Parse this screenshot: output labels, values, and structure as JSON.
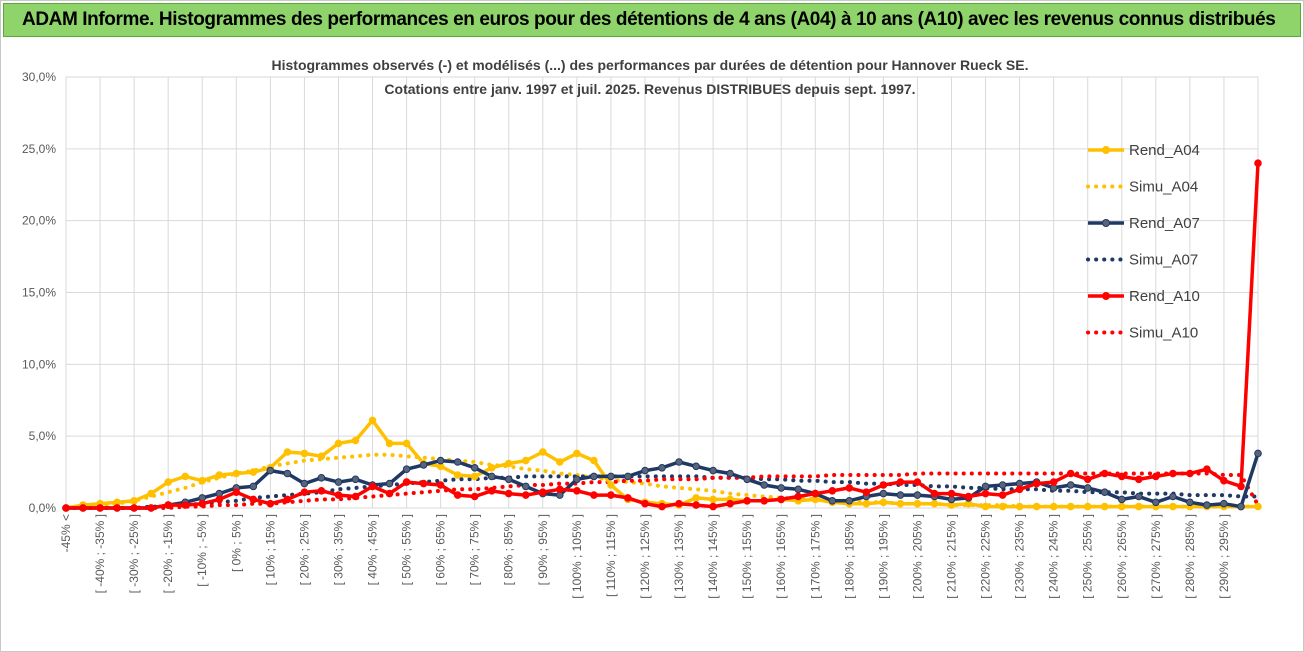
{
  "banner": {
    "title": "ADAM Informe. Histogrammes des performances en euros pour des détentions de 4 ans (A04) à 10 ans (A10) avec les revenus connus distribués"
  },
  "chart_data": {
    "type": "line",
    "title": "Histogrammes observés (-) et modélisés (...)  des performances par durées de détention pour Hannover Rueck SE.",
    "subtitle": "Cotations entre janv. 1997 et juil. 2025. Revenus DISTRIBUES depuis sept. 1997.",
    "ylim": [
      0,
      30
    ],
    "yticks": [
      "0,0%",
      "5,0%",
      "10,0%",
      "15,0%",
      "20,0%",
      "25,0%",
      "30,0%"
    ],
    "x_tick_labels": [
      "-45% <",
      "[ -40% ; -35% ]",
      "[ -30% ; -25% ]",
      "[ -20% ; -15% ]",
      "[ -10% ; -5% ]",
      "[ 0% ; 5% ]",
      "[ 10% ; 15% ]",
      "[ 20% ; 25% ]",
      "[ 30% ; 35% ]",
      "[ 40% ; 45% ]",
      "[ 50% ; 55% ]",
      "[ 60% ; 65% ]",
      "[ 70% ; 75% ]",
      "[ 80% ; 85% ]",
      "[ 90% ; 95% ]",
      "[ 100% ; 105% ]",
      "[ 110% ; 115% ]",
      "[ 120% ; 125% ]",
      "[ 130% ; 135% ]",
      "[ 140% ; 145% ]",
      "[ 150% ; 155% ]",
      "[ 160% ; 165% ]",
      "[ 170% ; 175% ]",
      "[ 180% ; 185% ]",
      "[ 190% ; 195% ]",
      "[ 200% ; 205% ]",
      "[ 210% ; 215% ]",
      "[ 220% ; 225% ]",
      "[ 230% ; 235% ]",
      "[ 240% ; 245% ]",
      "[ 250% ; 255% ]",
      "[ 260% ; 265% ]",
      "[ 270% ; 275% ]",
      "[ 280% ; 285% ]",
      "[ 290% ; 295% ]"
    ],
    "grid": true,
    "legend_position": "right",
    "series": [
      {
        "name": "Rend_A04",
        "style": "solid",
        "color": "#ffc000",
        "values": [
          0,
          0.2,
          0.3,
          0.4,
          0.5,
          1.0,
          1.8,
          2.2,
          1.9,
          2.3,
          2.4,
          2.5,
          2.8,
          3.9,
          3.8,
          3.6,
          4.5,
          4.7,
          6.1,
          4.5,
          4.5,
          3.1,
          2.9,
          2.3,
          2.2,
          2.8,
          3.1,
          3.3,
          3.9,
          3.2,
          3.8,
          3.3,
          1.6,
          0.6,
          0.4,
          0.3,
          0.2,
          0.7,
          0.6,
          0.6,
          0.5,
          0.5,
          0.6,
          0.5,
          0.6,
          0.4,
          0.3,
          0.3,
          0.4,
          0.3,
          0.3,
          0.3,
          0.2,
          0.3,
          0.1,
          0.1,
          0.1,
          0.1,
          0.1,
          0.1,
          0.1,
          0.1,
          0.1,
          0.1,
          0.1,
          0.1,
          0.1,
          0.1,
          0.1,
          0.1,
          0.1
        ]
      },
      {
        "name": "Simu_A04",
        "style": "dotted",
        "color": "#ffc000",
        "values": [
          0,
          0.1,
          0.2,
          0.3,
          0.5,
          0.8,
          1.1,
          1.4,
          1.8,
          2.1,
          2.4,
          2.6,
          2.9,
          3.1,
          3.3,
          3.4,
          3.5,
          3.6,
          3.7,
          3.7,
          3.6,
          3.5,
          3.4,
          3.3,
          3.2,
          3.0,
          2.9,
          2.7,
          2.6,
          2.4,
          2.3,
          2.1,
          2.0,
          1.8,
          1.7,
          1.5,
          1.4,
          1.3,
          1.2,
          1.0,
          0.9,
          0.8,
          0.7,
          0.7,
          0.6,
          0.5,
          0.5,
          0.4,
          0.4,
          0.3,
          0.3,
          0.3,
          0.2,
          0.2,
          0.2,
          0.2,
          0.1,
          0.1,
          0.1,
          0.1,
          0.1,
          0.1,
          0.1,
          0.1,
          0.1,
          0.1,
          0.1,
          0.1,
          0.1,
          0.1,
          0.1
        ]
      },
      {
        "name": "Rend_A07",
        "style": "solid",
        "color": "#1f3864",
        "values": [
          0,
          0,
          0,
          0,
          0,
          0,
          0.2,
          0.4,
          0.7,
          1.0,
          1.4,
          1.5,
          2.6,
          2.4,
          1.7,
          2.1,
          1.8,
          2.0,
          1.6,
          1.7,
          2.7,
          3.0,
          3.3,
          3.2,
          2.8,
          2.2,
          2.0,
          1.5,
          1.0,
          0.9,
          2.0,
          2.2,
          2.2,
          2.2,
          2.6,
          2.8,
          3.2,
          2.9,
          2.6,
          2.4,
          2.0,
          1.6,
          1.4,
          1.3,
          1.0,
          0.5,
          0.5,
          0.8,
          1.0,
          0.9,
          0.9,
          0.8,
          0.6,
          0.7,
          1.5,
          1.6,
          1.7,
          1.8,
          1.4,
          1.6,
          1.4,
          1.1,
          0.6,
          0.8,
          0.4,
          0.8,
          0.4,
          0.2,
          0.3,
          0.1,
          3.8
        ]
      },
      {
        "name": "Simu_A07",
        "style": "dotted",
        "color": "#1f3864",
        "values": [
          0,
          0,
          0,
          0,
          0,
          0.1,
          0.1,
          0.2,
          0.3,
          0.4,
          0.5,
          0.7,
          0.8,
          0.9,
          1.0,
          1.1,
          1.3,
          1.4,
          1.5,
          1.6,
          1.7,
          1.8,
          1.9,
          2.0,
          2.0,
          2.1,
          2.1,
          2.2,
          2.2,
          2.2,
          2.2,
          2.2,
          2.2,
          2.2,
          2.2,
          2.2,
          2.2,
          2.2,
          2.1,
          2.1,
          2.1,
          2.0,
          2.0,
          1.9,
          1.9,
          1.8,
          1.8,
          1.7,
          1.7,
          1.6,
          1.6,
          1.5,
          1.5,
          1.4,
          1.4,
          1.3,
          1.3,
          1.3,
          1.2,
          1.2,
          1.1,
          1.1,
          1.1,
          1.0,
          1.0,
          1.0,
          0.9,
          0.9,
          0.9,
          0.8,
          0.8
        ]
      },
      {
        "name": "Rend_A10",
        "style": "solid",
        "color": "#ff0000",
        "values": [
          0,
          0,
          0,
          0,
          0,
          0,
          0.2,
          0.2,
          0.3,
          0.6,
          1.1,
          0.6,
          0.3,
          0.6,
          1.1,
          1.2,
          0.9,
          0.8,
          1.5,
          1.0,
          1.8,
          1.7,
          1.6,
          0.9,
          0.8,
          1.2,
          1.0,
          0.9,
          1.1,
          1.3,
          1.2,
          0.9,
          0.9,
          0.7,
          0.3,
          0.1,
          0.3,
          0.2,
          0.1,
          0.3,
          0.5,
          0.5,
          0.6,
          0.8,
          1.0,
          1.2,
          1.4,
          1.1,
          1.6,
          1.8,
          1.8,
          1.0,
          1.0,
          0.8,
          1.0,
          0.9,
          1.3,
          1.7,
          1.8,
          2.4,
          2.0,
          2.4,
          2.2,
          2.0,
          2.2,
          2.4,
          2.4,
          2.7,
          1.9,
          1.5,
          24.0
        ]
      },
      {
        "name": "Simu_A10",
        "style": "dotted",
        "color": "#ff0000",
        "values": [
          0,
          0,
          0,
          0,
          0,
          0,
          0,
          0.1,
          0.1,
          0.2,
          0.2,
          0.3,
          0.3,
          0.4,
          0.5,
          0.6,
          0.6,
          0.7,
          0.8,
          0.9,
          1.0,
          1.1,
          1.2,
          1.3,
          1.3,
          1.4,
          1.5,
          1.6,
          1.6,
          1.7,
          1.7,
          1.8,
          1.8,
          1.9,
          1.9,
          2.0,
          2.0,
          2.0,
          2.1,
          2.1,
          2.1,
          2.2,
          2.2,
          2.2,
          2.2,
          2.3,
          2.3,
          2.3,
          2.3,
          2.3,
          2.4,
          2.4,
          2.4,
          2.4,
          2.4,
          2.4,
          2.4,
          2.4,
          2.4,
          2.4,
          2.4,
          2.4,
          2.4,
          2.4,
          2.4,
          2.4,
          2.4,
          2.4,
          2.3,
          2.3,
          0.2
        ]
      }
    ]
  }
}
